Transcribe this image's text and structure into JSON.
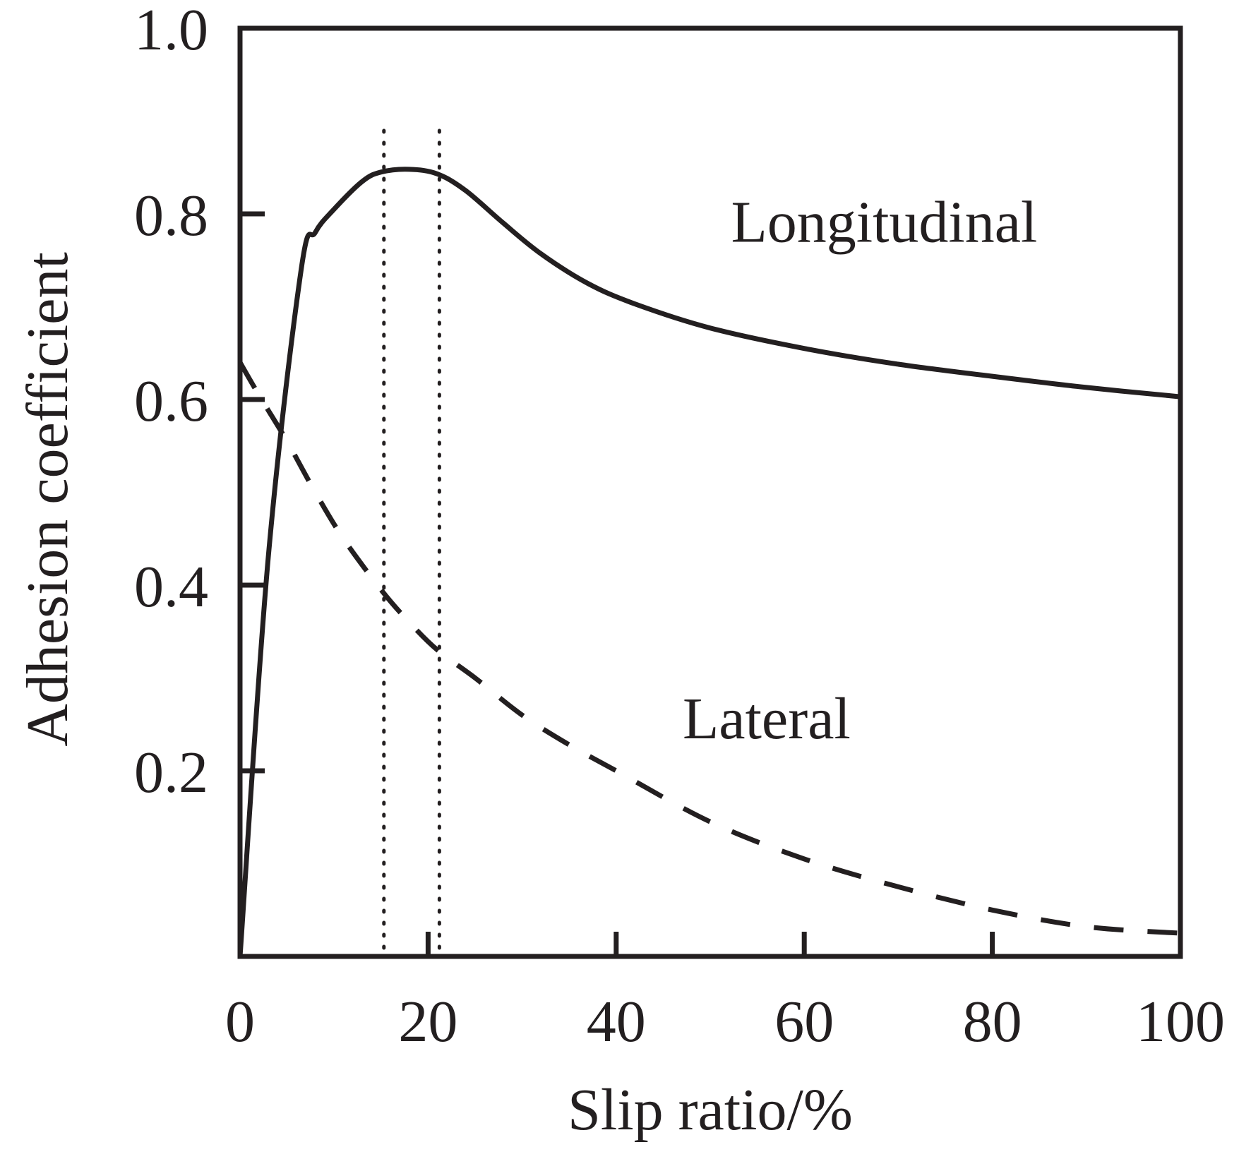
{
  "chart_data": {
    "type": "line",
    "title": "",
    "xlabel": "Slip ratio/%",
    "ylabel": "Adhesion coefficient",
    "xlim": [
      0,
      100
    ],
    "ylim": [
      0,
      1.0
    ],
    "grid": false,
    "x_ticks": [
      0,
      20,
      40,
      60,
      80,
      100
    ],
    "x_tick_labels": [
      "0",
      "20",
      "40",
      "60",
      "80",
      "100"
    ],
    "y_ticks": [
      0.2,
      0.4,
      0.6,
      0.8,
      1.0
    ],
    "y_tick_labels": [
      "0.2",
      "0.4",
      "0.6",
      "0.8",
      "1.0"
    ],
    "series": [
      {
        "name": "Longitudinal",
        "style": "solid",
        "x": [
          0,
          3,
          6.5,
          8,
          10,
          13,
          15,
          18,
          21,
          24,
          28,
          32,
          37,
          42,
          50,
          60,
          70,
          80,
          90,
          100
        ],
        "y": [
          0.0,
          0.43,
          0.74,
          0.78,
          0.805,
          0.835,
          0.845,
          0.848,
          0.843,
          0.825,
          0.79,
          0.757,
          0.725,
          0.703,
          0.677,
          0.655,
          0.638,
          0.625,
          0.613,
          0.603
        ]
      },
      {
        "name": "Lateral",
        "style": "dashed",
        "x": [
          0,
          2,
          5,
          8,
          11,
          15,
          18,
          21,
          25,
          30,
          35,
          40,
          50,
          60,
          70,
          80,
          90,
          100
        ],
        "y": [
          0.64,
          0.605,
          0.555,
          0.5,
          0.45,
          0.395,
          0.36,
          0.33,
          0.3,
          0.26,
          0.228,
          0.2,
          0.145,
          0.105,
          0.075,
          0.05,
          0.032,
          0.025
        ]
      }
    ],
    "reference_lines": [
      {
        "axis": "x",
        "value": 15.3,
        "style": "dotted"
      },
      {
        "axis": "x",
        "value": 21.2,
        "style": "dotted"
      }
    ],
    "annotations": [
      {
        "text": "Longitudinal",
        "x": 68.5,
        "y": 0.77
      },
      {
        "text": "Lateral",
        "x": 56,
        "y": 0.235
      }
    ]
  }
}
